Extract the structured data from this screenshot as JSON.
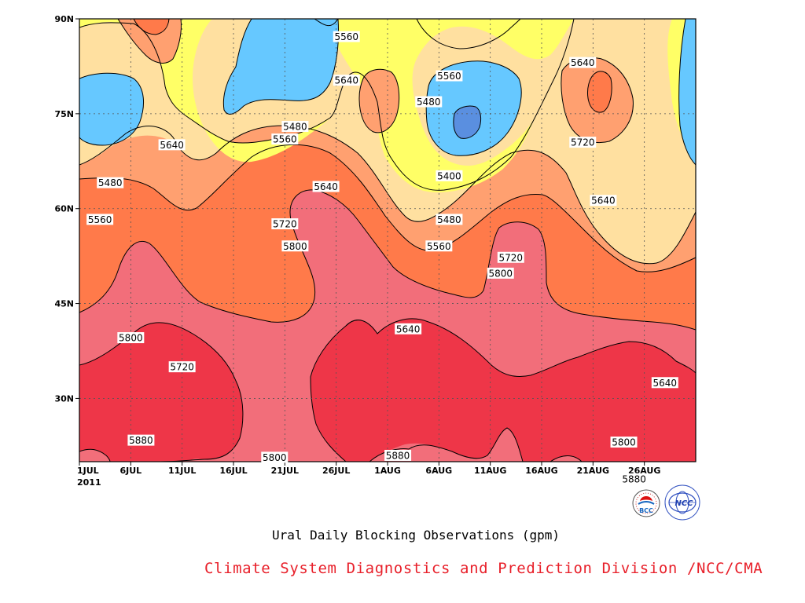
{
  "chart_data": {
    "type": "heatmap",
    "title": "Ural Daily Blocking Observations (gpm)",
    "credit": "Climate System Diagnostics and Prediction Division /NCC/CMA",
    "logos": [
      "BCC",
      "NCC"
    ],
    "x_tick_labels": [
      "1JUL",
      "6JUL",
      "11JUL",
      "16JUL",
      "21JUL",
      "26JUL",
      "1AUG",
      "6AUG",
      "11AUG",
      "16AUG",
      "21AUG",
      "26AUG"
    ],
    "x_year_label": "2011",
    "x_range": [
      "2011-07-01",
      "2011-08-30"
    ],
    "y_tick_labels": [
      "30N",
      "45N",
      "60N",
      "75N",
      "90N"
    ],
    "y_range_deg": [
      20,
      90
    ],
    "grid": "dotted",
    "color_levels": [
      {
        "range": "< 5400",
        "color": "#5a8fe0"
      },
      {
        "range": "5400-5480",
        "color": "#66c8ff"
      },
      {
        "range": "5480-5560",
        "color": "#ffff66"
      },
      {
        "range": "5560-5640",
        "color": "#ffe0a0"
      },
      {
        "range": "5640-5720",
        "color": "#ffa070"
      },
      {
        "range": "5720-5800",
        "color": "#ff7a4a"
      },
      {
        "range": "5800-5880",
        "color": "#f26e7a"
      },
      {
        "range": "> 5880",
        "color": "#ee3648"
      }
    ],
    "contour_labels": [
      {
        "text": "5560",
        "date": "2011-07-27",
        "lat": 87.2
      },
      {
        "text": "5560",
        "date": "2011-08-06",
        "lat": 81.0
      },
      {
        "text": "5640",
        "date": "2011-08-19",
        "lat": 83.1
      },
      {
        "text": "5640",
        "date": "2011-07-27",
        "lat": 80.3
      },
      {
        "text": "5480",
        "date": "2011-08-04",
        "lat": 76.9
      },
      {
        "text": "5480",
        "date": "2011-07-22",
        "lat": 73.0
      },
      {
        "text": "5560",
        "date": "2011-07-21",
        "lat": 71.0
      },
      {
        "text": "5640",
        "date": "2011-07-10",
        "lat": 70.1
      },
      {
        "text": "5720",
        "date": "2011-08-19",
        "lat": 70.5
      },
      {
        "text": "5400",
        "date": "2011-08-06",
        "lat": 65.2
      },
      {
        "text": "5480",
        "date": "2011-07-04",
        "lat": 64.1
      },
      {
        "text": "5640",
        "date": "2011-07-25",
        "lat": 63.5
      },
      {
        "text": "5640",
        "date": "2011-08-21",
        "lat": 61.3
      },
      {
        "text": "5560",
        "date": "2011-07-03",
        "lat": 58.3
      },
      {
        "text": "5480",
        "date": "2011-08-06",
        "lat": 58.3
      },
      {
        "text": "5720",
        "date": "2011-07-21",
        "lat": 57.6
      },
      {
        "text": "5560",
        "date": "2011-08-05",
        "lat": 54.1
      },
      {
        "text": "5800",
        "date": "2011-07-22",
        "lat": 54.1
      },
      {
        "text": "5720",
        "date": "2011-08-12",
        "lat": 52.3
      },
      {
        "text": "5800",
        "date": "2011-08-11",
        "lat": 49.8
      },
      {
        "text": "5640",
        "date": "2011-08-02",
        "lat": 41.0
      },
      {
        "text": "5800",
        "date": "2011-07-06",
        "lat": 39.6
      },
      {
        "text": "5720",
        "date": "2011-07-11",
        "lat": 35.0
      },
      {
        "text": "5640",
        "date": "2011-08-27",
        "lat": 32.5
      },
      {
        "text": "5880",
        "date": "2011-07-07",
        "lat": 23.4
      },
      {
        "text": "5880",
        "date": "2011-08-01",
        "lat": 21.0
      },
      {
        "text": "5800",
        "date": "2011-08-23",
        "lat": 23.1
      },
      {
        "text": "5800",
        "date": "2011-07-20",
        "lat": 20.7
      },
      {
        "text": "5880",
        "date": "2011-08-24",
        "lat": 17.3
      }
    ]
  }
}
